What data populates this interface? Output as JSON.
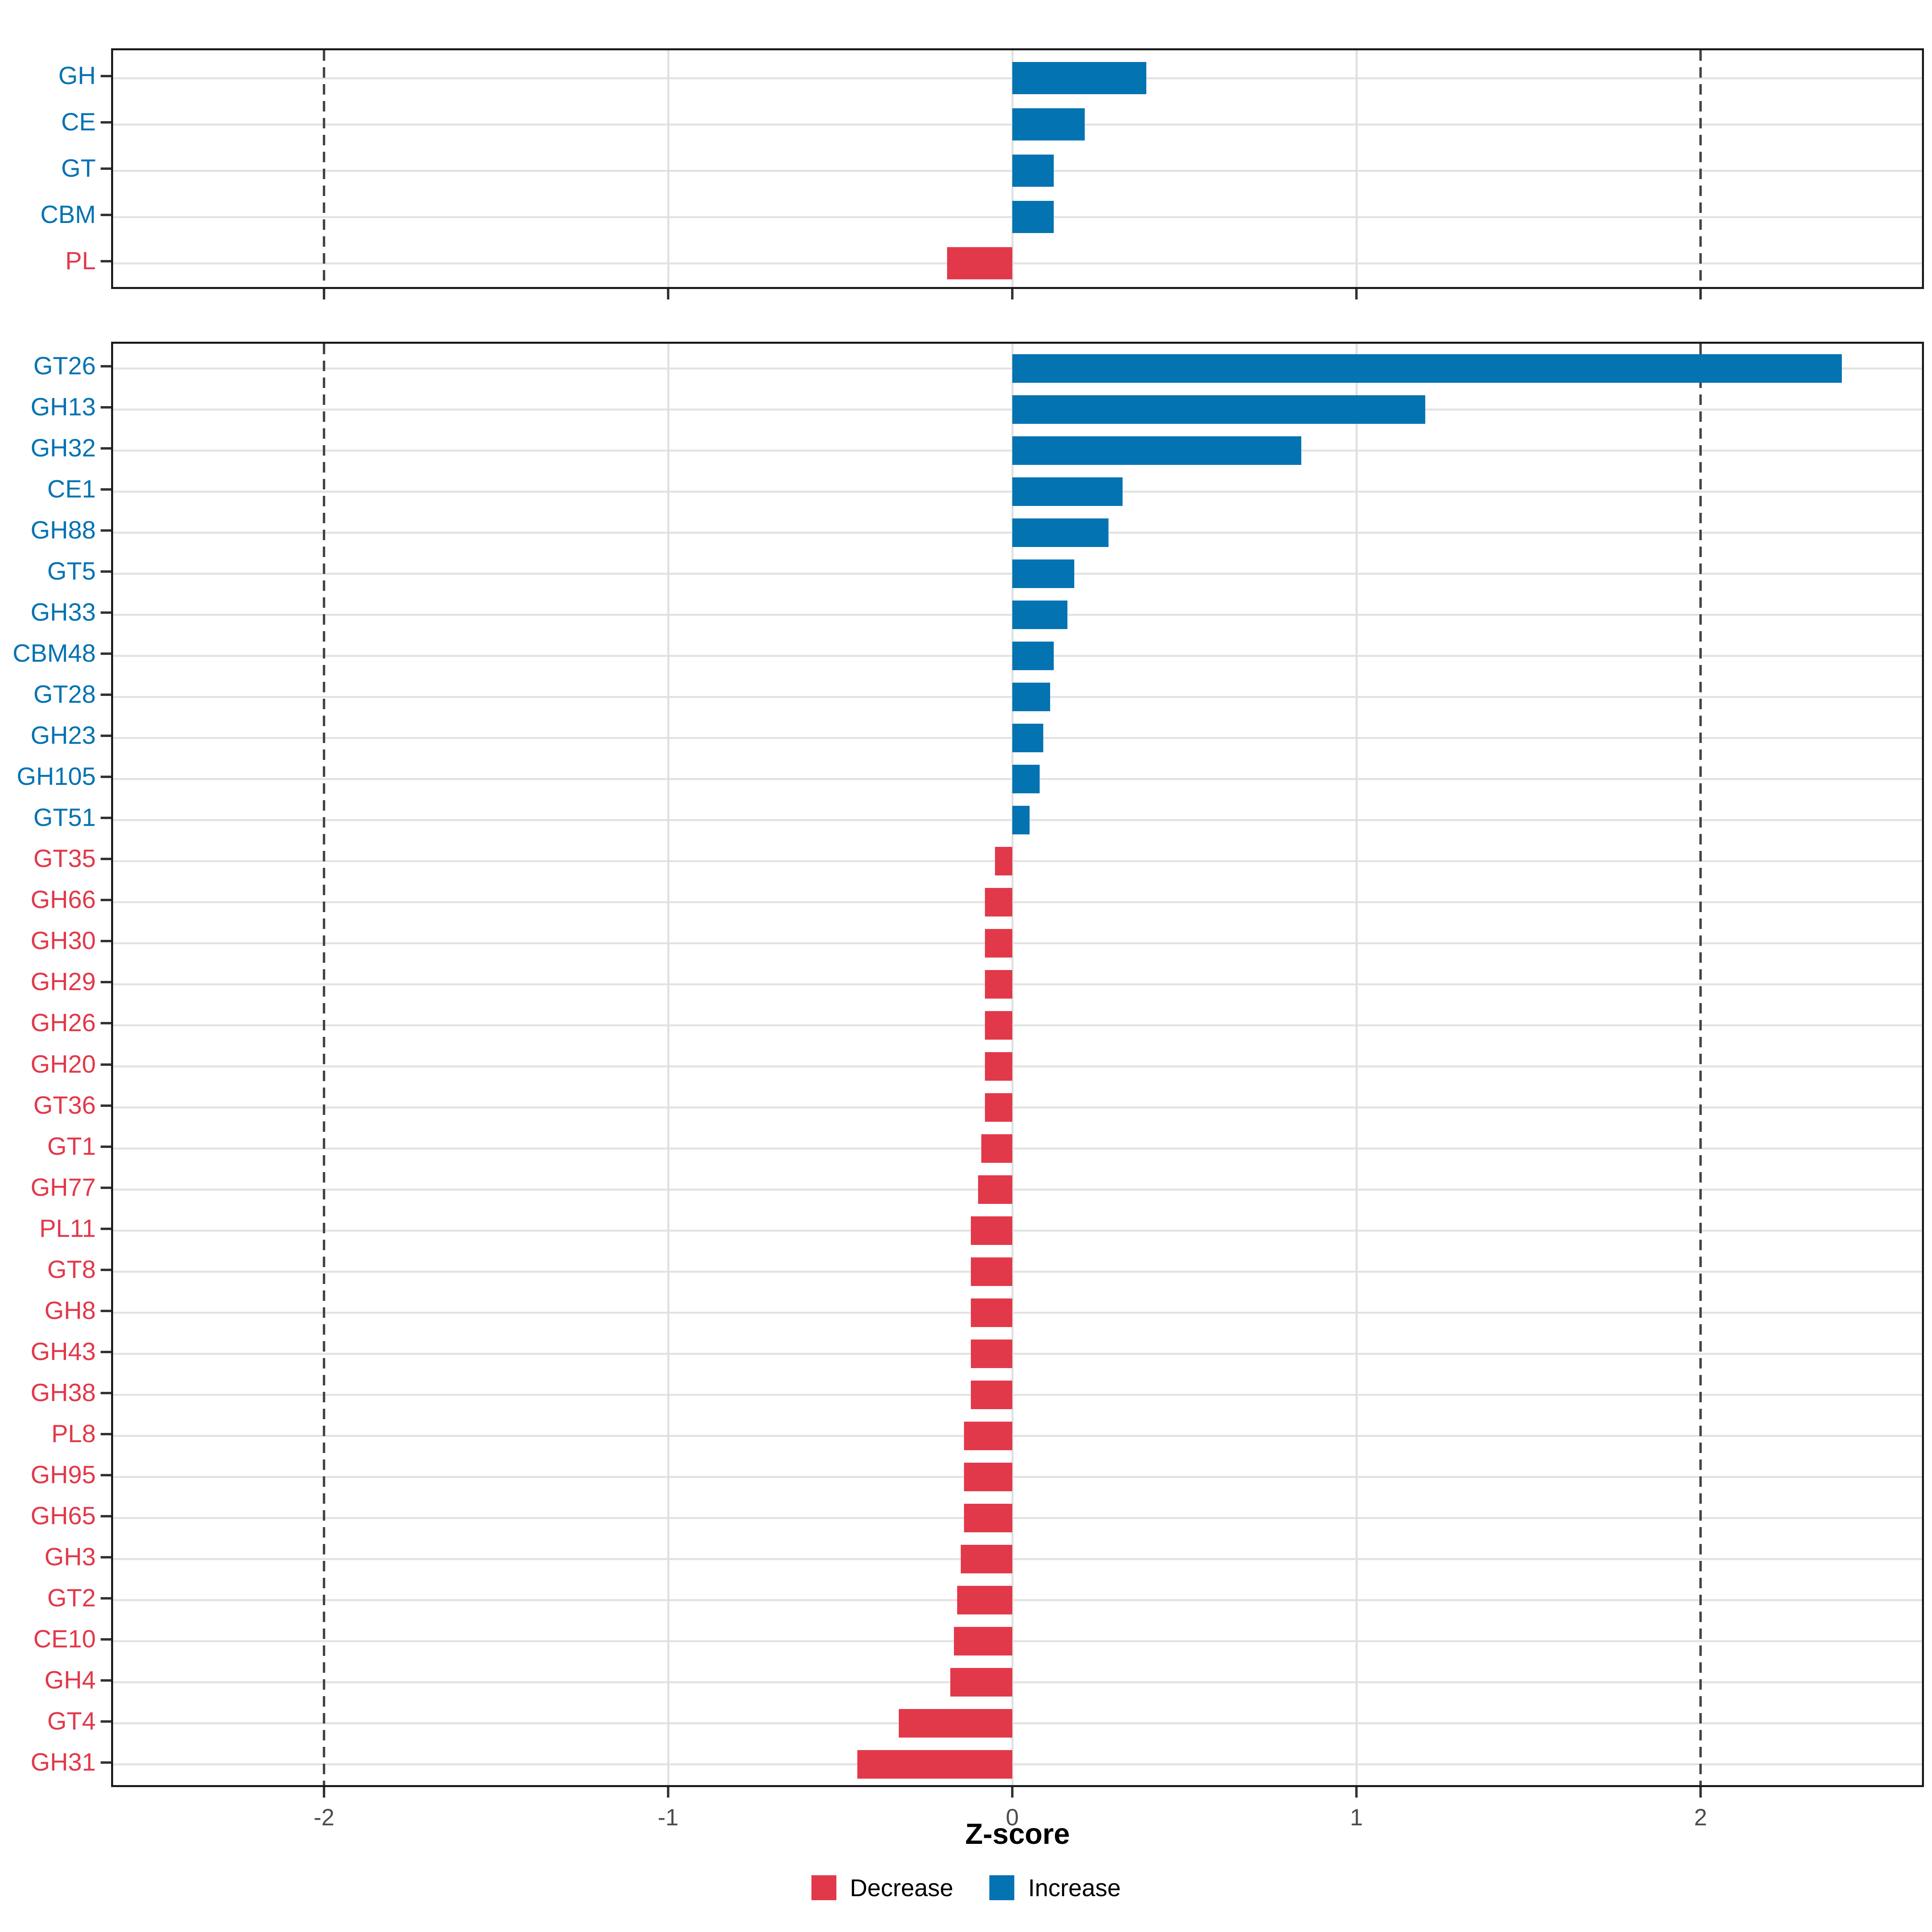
{
  "chart_data": [
    {
      "type": "bar",
      "orientation": "horizontal",
      "panel": "top",
      "title": "",
      "xlabel": "Z-score",
      "categories": [
        "GH",
        "CE",
        "GT",
        "CBM",
        "PL"
      ],
      "values": [
        0.39,
        0.21,
        0.12,
        0.12,
        -0.19
      ],
      "directions": [
        "Increase",
        "Increase",
        "Increase",
        "Increase",
        "Decrease"
      ],
      "xlim": [
        -2.62,
        2.65
      ],
      "grid": "on",
      "dashed_vlines": [
        -2,
        2
      ]
    },
    {
      "type": "bar",
      "orientation": "horizontal",
      "panel": "bottom",
      "title": "",
      "xlabel": "Z-score",
      "categories": [
        "GT26",
        "GH13",
        "GH32",
        "CE1",
        "GH88",
        "GT5",
        "GH33",
        "CBM48",
        "GT28",
        "GH23",
        "GH105",
        "GT51",
        "GT35",
        "GH66",
        "GH30",
        "GH29",
        "GH26",
        "GH20",
        "GT36",
        "GT1",
        "GH77",
        "PL11",
        "GT8",
        "GH8",
        "GH43",
        "GH38",
        "PL8",
        "GH95",
        "GH65",
        "GH3",
        "GT2",
        "CE10",
        "GH4",
        "GT4",
        "GH31"
      ],
      "values": [
        2.41,
        1.2,
        0.84,
        0.32,
        0.28,
        0.18,
        0.16,
        0.12,
        0.11,
        0.09,
        0.08,
        0.05,
        -0.05,
        -0.08,
        -0.08,
        -0.08,
        -0.08,
        -0.08,
        -0.08,
        -0.09,
        -0.1,
        -0.12,
        -0.12,
        -0.12,
        -0.12,
        -0.12,
        -0.14,
        -0.14,
        -0.14,
        -0.15,
        -0.16,
        -0.17,
        -0.18,
        -0.33,
        -0.45
      ],
      "directions": [
        "Increase",
        "Increase",
        "Increase",
        "Increase",
        "Increase",
        "Increase",
        "Increase",
        "Increase",
        "Increase",
        "Increase",
        "Increase",
        "Increase",
        "Decrease",
        "Decrease",
        "Decrease",
        "Decrease",
        "Decrease",
        "Decrease",
        "Decrease",
        "Decrease",
        "Decrease",
        "Decrease",
        "Decrease",
        "Decrease",
        "Decrease",
        "Decrease",
        "Decrease",
        "Decrease",
        "Decrease",
        "Decrease",
        "Decrease",
        "Decrease",
        "Decrease",
        "Decrease",
        "Decrease"
      ],
      "xlim": [
        -2.62,
        2.65
      ],
      "grid": "on",
      "dashed_vlines": [
        -2,
        2
      ]
    }
  ],
  "axis": {
    "xlabel": "Z-score",
    "tick_values": [
      -2,
      -1,
      0,
      1,
      2
    ],
    "tick_labels": [
      "-2",
      "-1",
      "0",
      "1",
      "2"
    ],
    "gray_gridline_values": [
      -1,
      0,
      1
    ]
  },
  "legend": {
    "items": [
      {
        "label": "Decrease",
        "color": "#e2394a"
      },
      {
        "label": "Increase",
        "color": "#0473b2"
      }
    ]
  },
  "colors": {
    "increase": "#0473b2",
    "decrease": "#e2394a",
    "grid": "#e3e3e3",
    "dashed_line": "#454545",
    "panel_border": "#1a1a1a",
    "tick_text": "#4d4d4d"
  }
}
